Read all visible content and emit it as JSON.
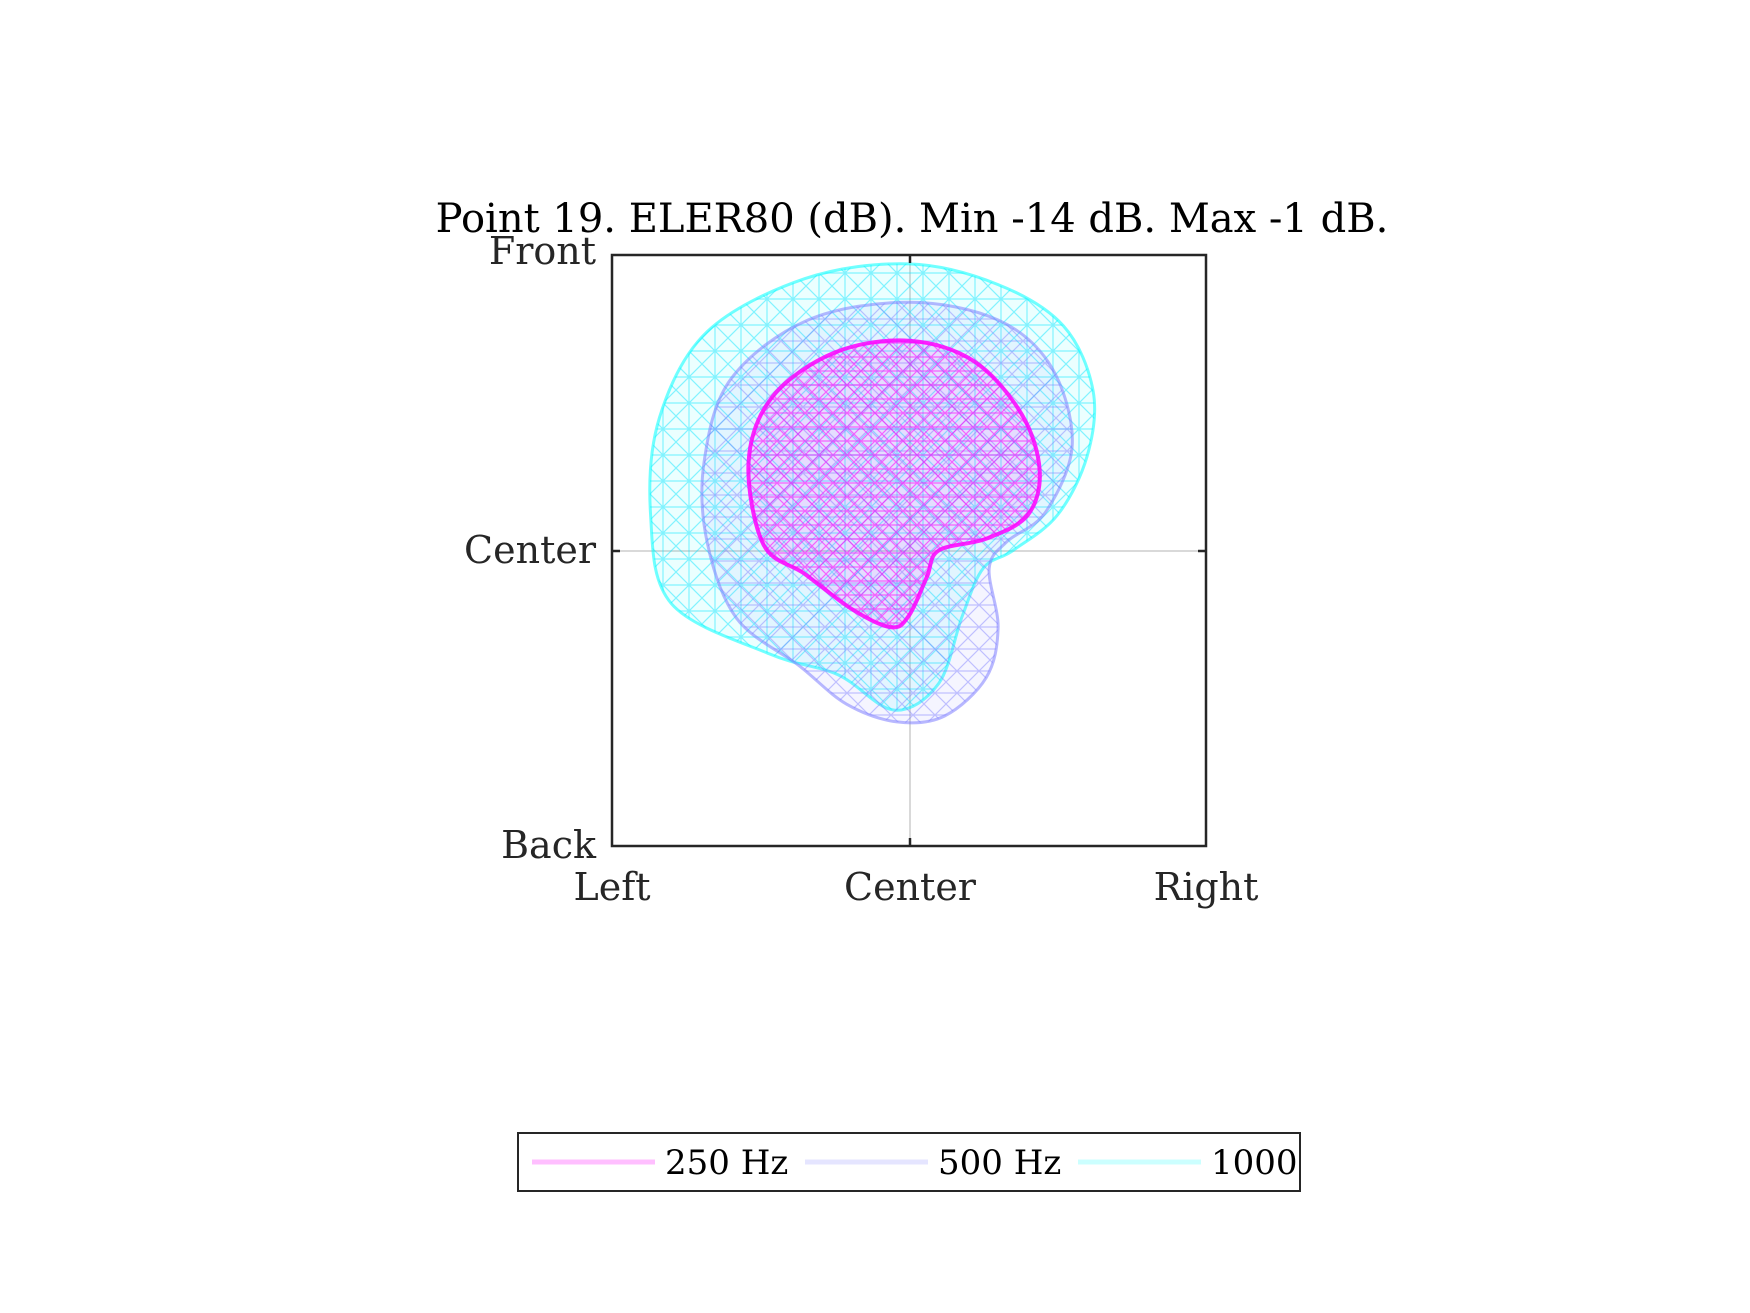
{
  "chart_data": {
    "type": "line",
    "title": "Point 19. ELER80 (dB). Min -14 dB. Max -1 dB.",
    "xlabel": "",
    "ylabel": "",
    "xlim": [
      -1,
      1
    ],
    "ylim": [
      -1,
      1
    ],
    "x_ticks": [
      {
        "value": -1,
        "label": "Left"
      },
      {
        "value": 0,
        "label": "Center"
      },
      {
        "value": 1,
        "label": "Right"
      }
    ],
    "y_ticks": [
      {
        "value": -1,
        "label": "Back"
      },
      {
        "value": 0,
        "label": "Center"
      },
      {
        "value": 1,
        "label": "Front"
      }
    ],
    "grid": "center-lines",
    "legend": {
      "placement": "bottom",
      "orientation": "horizontal"
    },
    "series": [
      {
        "name": "250 Hz",
        "color": "#ff00ff",
        "outline": [
          [
            0.0,
            0.71
          ],
          [
            0.22,
            0.64
          ],
          [
            0.38,
            0.46
          ],
          [
            0.44,
            0.27
          ],
          [
            0.4,
            0.12
          ],
          [
            0.26,
            0.04
          ],
          [
            0.1,
            0.0
          ],
          [
            0.06,
            -0.09
          ],
          [
            0.0,
            -0.22
          ],
          [
            -0.06,
            -0.26
          ],
          [
            -0.19,
            -0.2
          ],
          [
            -0.35,
            -0.08
          ],
          [
            -0.49,
            0.02
          ],
          [
            -0.54,
            0.3
          ],
          [
            -0.46,
            0.52
          ],
          [
            -0.25,
            0.67
          ],
          [
            0.0,
            0.71
          ]
        ]
      },
      {
        "name": "500 Hz",
        "color": "#7f7fff",
        "outline": [
          [
            0.0,
            0.84
          ],
          [
            0.3,
            0.78
          ],
          [
            0.48,
            0.62
          ],
          [
            0.55,
            0.36
          ],
          [
            0.46,
            0.13
          ],
          [
            0.33,
            0.03
          ],
          [
            0.27,
            -0.06
          ],
          [
            0.3,
            -0.26
          ],
          [
            0.26,
            -0.43
          ],
          [
            0.12,
            -0.56
          ],
          [
            -0.04,
            -0.58
          ],
          [
            -0.21,
            -0.52
          ],
          [
            -0.37,
            -0.39
          ],
          [
            -0.58,
            -0.23
          ],
          [
            -0.68,
            0.03
          ],
          [
            -0.69,
            0.3
          ],
          [
            -0.6,
            0.58
          ],
          [
            -0.34,
            0.78
          ],
          [
            0.0,
            0.84
          ]
        ]
      },
      {
        "name": "1000",
        "color": "#00ffff",
        "outline": [
          [
            0.0,
            0.97
          ],
          [
            0.3,
            0.9
          ],
          [
            0.52,
            0.76
          ],
          [
            0.62,
            0.54
          ],
          [
            0.6,
            0.32
          ],
          [
            0.5,
            0.12
          ],
          [
            0.35,
            0.0
          ],
          [
            0.25,
            -0.06
          ],
          [
            0.18,
            -0.22
          ],
          [
            0.1,
            -0.45
          ],
          [
            -0.05,
            -0.54
          ],
          [
            -0.24,
            -0.42
          ],
          [
            -0.47,
            -0.35
          ],
          [
            -0.8,
            -0.18
          ],
          [
            -0.87,
            0.12
          ],
          [
            -0.84,
            0.45
          ],
          [
            -0.68,
            0.74
          ],
          [
            -0.35,
            0.92
          ],
          [
            0.0,
            0.97
          ]
        ]
      }
    ]
  }
}
